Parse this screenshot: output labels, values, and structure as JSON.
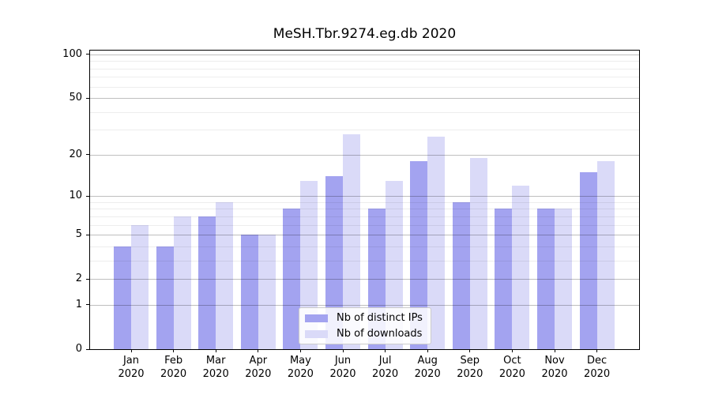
{
  "chart_data": {
    "type": "bar",
    "title": "MeSH.Tbr.9274.eg.db 2020",
    "categories": [
      "Jan 2020",
      "Feb 2020",
      "Mar 2020",
      "Apr 2020",
      "May 2020",
      "Jun 2020",
      "Jul 2020",
      "Aug 2020",
      "Sep 2020",
      "Oct 2020",
      "Nov 2020",
      "Dec 2020"
    ],
    "series": [
      {
        "name": "Nb of distinct IPs",
        "color": "#a3a3f0",
        "values": [
          4,
          4,
          7,
          5,
          8,
          14,
          8,
          18,
          9,
          8,
          8,
          15
        ]
      },
      {
        "name": "Nb of downloads",
        "color": "#dadaf8",
        "values": [
          6,
          7,
          9,
          5,
          13,
          28,
          13,
          27,
          19,
          12,
          8,
          18
        ]
      }
    ],
    "xlabel": "",
    "ylabel": "",
    "yscale": "log1p",
    "ylim": [
      0,
      100
    ],
    "y_ticks": [
      0,
      1,
      2,
      5,
      10,
      20,
      50,
      100
    ],
    "y_minor_ticks": [
      3,
      4,
      6,
      7,
      8,
      9,
      30,
      40,
      60,
      70,
      80,
      90
    ],
    "grid": "horizontal major and minor gridlines",
    "legend_position": "lower center"
  }
}
